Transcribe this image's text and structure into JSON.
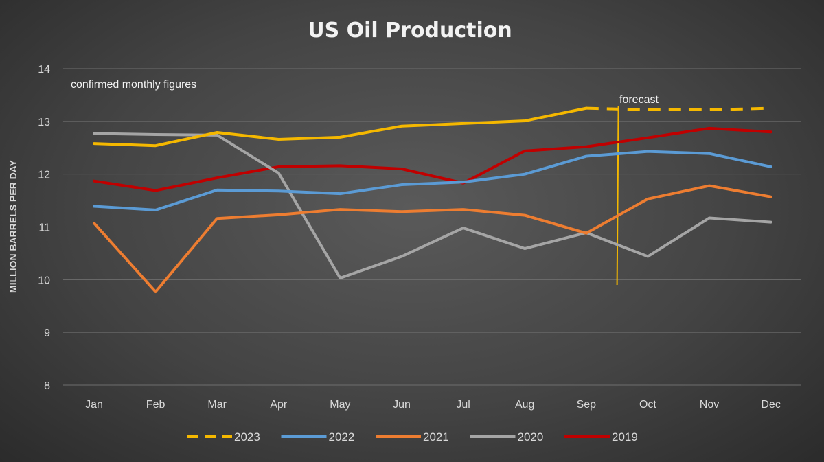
{
  "chart_data": {
    "type": "line",
    "title": "US Oil Production",
    "xlabel": "",
    "ylabel": "MILLION BARRELS PER DAY",
    "ylim": [
      8,
      14
    ],
    "yticks": [
      "8",
      "9",
      "10",
      "11",
      "12",
      "13",
      "14"
    ],
    "grid": true,
    "legend_position": "bottom",
    "categories": [
      "Jan",
      "Feb",
      "Mar",
      "Apr",
      "May",
      "Jun",
      "Jul",
      "Aug",
      "Sep",
      "Oct",
      "Nov",
      "Dec"
    ],
    "annotations": {
      "confirmed": "confirmed monthly figures",
      "forecast": "forecast"
    },
    "forecast_divider_between": [
      "Sep",
      "Oct"
    ],
    "series": [
      {
        "name": "2023",
        "color": "#f5b800",
        "dashed_from_index": 8,
        "values": [
          12.58,
          12.54,
          12.79,
          12.66,
          12.7,
          12.91,
          12.96,
          13.01,
          13.25,
          13.22,
          13.22,
          13.25
        ]
      },
      {
        "name": "2022",
        "color": "#5b9bd5",
        "values": [
          11.39,
          11.32,
          11.7,
          11.68,
          11.63,
          11.8,
          11.85,
          12.0,
          12.34,
          12.43,
          12.39,
          12.14
        ]
      },
      {
        "name": "2021",
        "color": "#ed7d31",
        "values": [
          11.07,
          9.77,
          11.16,
          11.23,
          11.33,
          11.29,
          11.33,
          11.22,
          10.88,
          11.53,
          11.78,
          11.57
        ]
      },
      {
        "name": "2020",
        "color": "#a5a5a5",
        "values": [
          12.77,
          12.75,
          12.74,
          12.02,
          10.03,
          10.44,
          10.98,
          10.59,
          10.89,
          10.44,
          11.17,
          11.09
        ]
      },
      {
        "name": "2019",
        "color": "#c00000",
        "values": [
          11.87,
          11.69,
          11.93,
          12.14,
          12.16,
          12.1,
          11.83,
          12.44,
          12.52,
          12.69,
          12.87,
          12.8
        ]
      }
    ]
  }
}
